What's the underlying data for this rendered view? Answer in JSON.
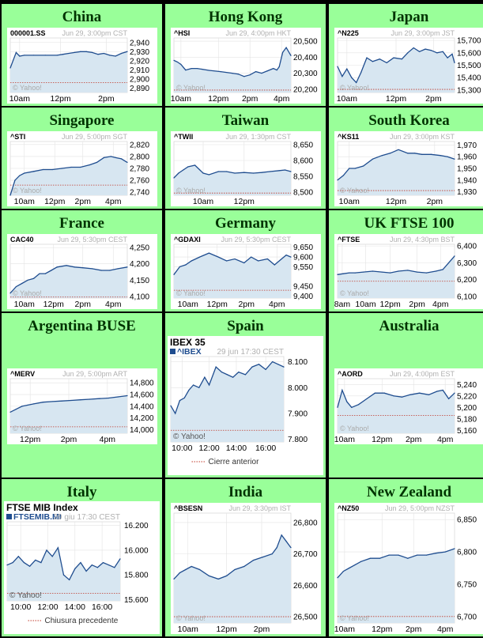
{
  "colors": {
    "cell_bg": "#99ff99",
    "fill": "#d7e6f1",
    "line": "#1f4d8f",
    "grid": "#e3e3e3",
    "prev_close": "#c0392b",
    "axis_text": "#000000",
    "meta_text": "#b0b0b0"
  },
  "chart_data": [
    {
      "region": "China",
      "type": "area",
      "symbol": "000001.SS",
      "time": "Jun 29, 3:00pm CST",
      "watermark": "© Yahoo!",
      "ylim": [
        2885,
        2945
      ],
      "yticks": [
        "2,940",
        "2,930",
        "2,920",
        "2,910",
        "2,900",
        "2,890"
      ],
      "ytick_values": [
        2940,
        2930,
        2920,
        2910,
        2900,
        2890
      ],
      "xticks": [
        "10am",
        "12pm",
        "2pm"
      ],
      "xtick_pos": [
        0.08,
        0.43,
        0.82
      ],
      "prev_close": 2896,
      "x": [
        0,
        0.05,
        0.08,
        0.12,
        0.2,
        0.3,
        0.4,
        0.45,
        0.5,
        0.55,
        0.6,
        0.65,
        0.7,
        0.75,
        0.8,
        0.85,
        0.9,
        0.95,
        1.0
      ],
      "y": [
        2912,
        2929,
        2925,
        2926,
        2926,
        2926,
        2926,
        2927,
        2928,
        2929,
        2930,
        2930,
        2929,
        2927,
        2928,
        2926,
        2925,
        2928,
        2930
      ]
    },
    {
      "region": "Hong Kong",
      "type": "area",
      "symbol": "^HSI",
      "time": "Jun 29, 4:00pm HKT",
      "watermark": "© Yahoo!",
      "ylim": [
        20180,
        20520
      ],
      "yticks": [
        "20,500",
        "20,400",
        "20,300",
        "20,200"
      ],
      "ytick_values": [
        20500,
        20400,
        20300,
        20200
      ],
      "xticks": [
        "10am",
        "12pm",
        "2pm",
        "4pm"
      ],
      "xtick_pos": [
        0.06,
        0.38,
        0.65,
        0.92
      ],
      "prev_close": 20195,
      "x": [
        0,
        0.03,
        0.06,
        0.1,
        0.15,
        0.2,
        0.3,
        0.4,
        0.5,
        0.55,
        0.6,
        0.65,
        0.7,
        0.75,
        0.8,
        0.85,
        0.88,
        0.9,
        0.93,
        0.96,
        1.0
      ],
      "y": [
        20380,
        20370,
        20355,
        20320,
        20330,
        20330,
        20318,
        20310,
        20300,
        20295,
        20280,
        20290,
        20310,
        20300,
        20315,
        20330,
        20320,
        20340,
        20430,
        20460,
        20410
      ]
    },
    {
      "region": "Japan",
      "type": "area",
      "symbol": "^N225",
      "time": "Jun 29, 3:00pm JST",
      "watermark": "© Yahoo!",
      "ylim": [
        15280,
        15720
      ],
      "yticks": [
        "15,700",
        "15,600",
        "15,500",
        "15,400",
        "15,300"
      ],
      "ytick_values": [
        15700,
        15600,
        15500,
        15400,
        15300
      ],
      "xticks": [
        "10am",
        "12pm",
        "2pm"
      ],
      "xtick_pos": [
        0.08,
        0.5,
        0.82
      ],
      "prev_close": 15305,
      "x": [
        0,
        0.04,
        0.08,
        0.12,
        0.16,
        0.2,
        0.25,
        0.3,
        0.36,
        0.42,
        0.48,
        0.55,
        0.6,
        0.65,
        0.7,
        0.75,
        0.8,
        0.85,
        0.9,
        0.94,
        0.98,
        1.0
      ],
      "y": [
        15490,
        15410,
        15470,
        15400,
        15360,
        15440,
        15560,
        15530,
        15550,
        15520,
        15560,
        15550,
        15600,
        15640,
        15610,
        15630,
        15620,
        15600,
        15610,
        15560,
        15590,
        15520
      ]
    },
    {
      "region": "Singapore",
      "type": "area",
      "symbol": "^STI",
      "time": "Jun 29, 5:00pm SGT",
      "watermark": "© Yahoo!",
      "ylim": [
        2735,
        2825
      ],
      "yticks": [
        "2,820",
        "2,800",
        "2,780",
        "2,760",
        "2,740"
      ],
      "ytick_values": [
        2820,
        2800,
        2780,
        2760,
        2740
      ],
      "xticks": [
        "10am",
        "12pm",
        "2pm",
        "4pm"
      ],
      "xtick_pos": [
        0.12,
        0.38,
        0.62,
        0.88
      ],
      "prev_close": 2752,
      "x": [
        0,
        0.04,
        0.08,
        0.12,
        0.2,
        0.28,
        0.36,
        0.44,
        0.52,
        0.6,
        0.68,
        0.74,
        0.8,
        0.86,
        0.9,
        0.95,
        1.0
      ],
      "y": [
        2735,
        2760,
        2768,
        2772,
        2775,
        2778,
        2778,
        2780,
        2782,
        2782,
        2786,
        2790,
        2798,
        2800,
        2798,
        2796,
        2790
      ]
    },
    {
      "region": "Taiwan",
      "type": "area",
      "symbol": "^TWII",
      "time": "Jun 29, 1:30pm CST",
      "watermark": "© Yahoo!",
      "ylim": [
        8490,
        8660
      ],
      "yticks": [
        "8,650",
        "8,600",
        "8,550",
        "8,500"
      ],
      "ytick_values": [
        8650,
        8600,
        8550,
        8500
      ],
      "xticks": [
        "10am",
        "12pm"
      ],
      "xtick_pos": [
        0.25,
        0.6
      ],
      "prev_close": 8497,
      "x": [
        0,
        0.04,
        0.08,
        0.12,
        0.18,
        0.25,
        0.3,
        0.38,
        0.45,
        0.52,
        0.6,
        0.68,
        0.75,
        0.82,
        0.9,
        0.95,
        1.0
      ],
      "y": [
        8545,
        8560,
        8570,
        8580,
        8585,
        8560,
        8555,
        8565,
        8565,
        8560,
        8562,
        8560,
        8562,
        8565,
        8568,
        8570,
        8565
      ]
    },
    {
      "region": "South Korea",
      "type": "area",
      "symbol": "^KS11",
      "time": "Jun 29, 3:00pm KST",
      "watermark": "© Yahoo!",
      "ylim": [
        1927,
        1973
      ],
      "yticks": [
        "1,970",
        "1,960",
        "1,950",
        "1,940",
        "1,930"
      ],
      "ytick_values": [
        1970,
        1960,
        1950,
        1940,
        1930
      ],
      "xticks": [
        "10am",
        "12pm",
        "2pm"
      ],
      "xtick_pos": [
        0.1,
        0.5,
        0.83
      ],
      "prev_close": 1931,
      "x": [
        0,
        0.05,
        0.1,
        0.15,
        0.22,
        0.3,
        0.38,
        0.45,
        0.52,
        0.6,
        0.66,
        0.72,
        0.8,
        0.88,
        0.94,
        1.0
      ],
      "y": [
        1940,
        1944,
        1950,
        1950,
        1952,
        1958,
        1961,
        1963,
        1966,
        1963,
        1963,
        1962,
        1962,
        1961,
        1960,
        1958
      ]
    },
    {
      "region": "France",
      "type": "area",
      "symbol": "CAC40",
      "time": "Jun 29, 5:30pm CEST",
      "watermark": "© Yahoo!",
      "ylim": [
        4095,
        4260
      ],
      "yticks": [
        "4,250",
        "4,200",
        "4,150",
        "4,100"
      ],
      "ytick_values": [
        4250,
        4200,
        4150,
        4100
      ],
      "xticks": [
        "10am",
        "12pm",
        "2pm",
        "4pm"
      ],
      "xtick_pos": [
        0.12,
        0.37,
        0.62,
        0.88
      ],
      "prev_close": 4098,
      "x": [
        0,
        0.05,
        0.1,
        0.15,
        0.2,
        0.25,
        0.3,
        0.35,
        0.4,
        0.48,
        0.55,
        0.62,
        0.7,
        0.78,
        0.85,
        0.92,
        1.0
      ],
      "y": [
        4110,
        4130,
        4140,
        4150,
        4155,
        4170,
        4170,
        4180,
        4190,
        4195,
        4190,
        4188,
        4185,
        4180,
        4180,
        4185,
        4190
      ]
    },
    {
      "region": "Germany",
      "type": "area",
      "symbol": "^GDAXI",
      "time": "Jun 29, 5:30pm CEST",
      "watermark": "© Yahoo!",
      "ylim": [
        9390,
        9665
      ],
      "yticks": [
        "9,650",
        "9,600",
        "9,550",
        "9,450",
        "9,400"
      ],
      "ytick_values": [
        9650,
        9600,
        9550,
        9450,
        9400
      ],
      "xticks": [
        "10am",
        "12pm",
        "2pm",
        "4pm"
      ],
      "xtick_pos": [
        0.12,
        0.37,
        0.62,
        0.88
      ],
      "prev_close": 9430,
      "x": [
        0,
        0.05,
        0.1,
        0.15,
        0.22,
        0.3,
        0.38,
        0.45,
        0.52,
        0.6,
        0.66,
        0.72,
        0.8,
        0.86,
        0.92,
        0.96,
        1.0
      ],
      "y": [
        9510,
        9550,
        9560,
        9580,
        9600,
        9620,
        9600,
        9580,
        9590,
        9570,
        9600,
        9580,
        9590,
        9560,
        9590,
        9610,
        9600
      ]
    },
    {
      "region": "UK FTSE 100",
      "type": "area",
      "symbol": "^FTSE",
      "time": "Jun 29, 4:30pm BST",
      "watermark": "© Yahoo!",
      "ylim": [
        6090,
        6410
      ],
      "yticks": [
        "6,400",
        "6,300",
        "6,200",
        "6,100"
      ],
      "ytick_values": [
        6400,
        6300,
        6200,
        6100
      ],
      "xticks": [
        "8am",
        "10am",
        "12pm",
        "2pm",
        "4pm"
      ],
      "xtick_pos": [
        0.04,
        0.24,
        0.45,
        0.68,
        0.88
      ],
      "prev_close": 6190,
      "x": [
        0,
        0.05,
        0.1,
        0.15,
        0.22,
        0.3,
        0.38,
        0.45,
        0.52,
        0.6,
        0.68,
        0.76,
        0.84,
        0.9,
        0.95,
        1.0
      ],
      "y": [
        6230,
        6235,
        6240,
        6240,
        6245,
        6250,
        6245,
        6240,
        6250,
        6255,
        6245,
        6240,
        6250,
        6260,
        6300,
        6340
      ]
    },
    {
      "region": "Argentina BUSE",
      "type": "area",
      "symbol": "^MERV",
      "time": "Jun 29, 5:00pm ART",
      "watermark": "© Yahoo!",
      "ylim": [
        13940,
        14870
      ],
      "yticks": [
        "14,800",
        "14,600",
        "14,400",
        "14,200",
        "14,000"
      ],
      "ytick_values": [
        14800,
        14600,
        14400,
        14200,
        14000
      ],
      "xticks": [
        "12pm",
        "2pm",
        "4pm"
      ],
      "xtick_pos": [
        0.17,
        0.5,
        0.83
      ],
      "prev_close": 14050,
      "x": [
        0,
        0.05,
        0.1,
        0.15,
        0.2,
        0.28,
        0.36,
        0.44,
        0.52,
        0.6,
        0.68,
        0.76,
        0.84,
        0.92,
        1.0
      ],
      "y": [
        14300,
        14350,
        14400,
        14420,
        14440,
        14470,
        14480,
        14490,
        14500,
        14510,
        14520,
        14530,
        14540,
        14560,
        14580
      ]
    },
    {
      "region": "Spain",
      "type": "area",
      "title": "IBEX 35",
      "symbol": "^IBEX",
      "time": "29 jun 17:30 CEST",
      "watermark": "© Yahoo!",
      "legend": "Cierre anterior",
      "ylim": [
        7790,
        8120
      ],
      "yticks": [
        "8.100",
        "8.000",
        "7.900",
        "7.800"
      ],
      "ytick_values": [
        8100,
        8000,
        7900,
        7800
      ],
      "xticks": [
        "10:00",
        "12:00",
        "14:00",
        "16:00"
      ],
      "xtick_pos": [
        0.1,
        0.34,
        0.58,
        0.84
      ],
      "prev_close": 7835,
      "x": [
        0,
        0.04,
        0.08,
        0.12,
        0.16,
        0.2,
        0.25,
        0.3,
        0.34,
        0.4,
        0.45,
        0.5,
        0.55,
        0.6,
        0.66,
        0.72,
        0.78,
        0.84,
        0.9,
        0.95,
        1.0
      ],
      "y": [
        7930,
        7900,
        7950,
        7960,
        7990,
        8010,
        8000,
        8040,
        8010,
        8080,
        8060,
        8050,
        8040,
        8060,
        8050,
        8080,
        8090,
        8070,
        8100,
        8090,
        8080
      ]
    },
    {
      "region": "Australia",
      "type": "area",
      "symbol": "^AORD",
      "time": "Jun 29, 4:00pm EST",
      "watermark": "© Yahoo!",
      "ylim": [
        5155,
        5250
      ],
      "yticks": [
        "5,240",
        "5,220",
        "5,200",
        "5,180",
        "5,160"
      ],
      "ytick_values": [
        5240,
        5220,
        5200,
        5180,
        5160
      ],
      "xticks": [
        "10am",
        "12pm",
        "2pm",
        "4pm"
      ],
      "xtick_pos": [
        0.06,
        0.38,
        0.65,
        0.92
      ],
      "prev_close": 5186,
      "x": [
        0,
        0.04,
        0.08,
        0.12,
        0.18,
        0.25,
        0.32,
        0.4,
        0.48,
        0.55,
        0.62,
        0.7,
        0.78,
        0.85,
        0.9,
        0.95,
        1.0
      ],
      "y": [
        5200,
        5230,
        5210,
        5200,
        5205,
        5215,
        5225,
        5225,
        5220,
        5218,
        5222,
        5225,
        5222,
        5228,
        5230,
        5215,
        5225
      ]
    },
    {
      "region": "Italy",
      "type": "area",
      "title": "FTSE MIB Index",
      "symbol": "FTSEMIB.MI",
      "time": "29 giu 17:30 CEST",
      "watermark": "© Yahoo!",
      "legend": "Chiusura precedente",
      "ylim": [
        15590,
        16230
      ],
      "yticks": [
        "16.200",
        "16.000",
        "15.800",
        "15.600"
      ],
      "ytick_values": [
        16200,
        16000,
        15800,
        15600
      ],
      "xticks": [
        "10:00",
        "12:00",
        "14:00",
        "16:00"
      ],
      "xtick_pos": [
        0.12,
        0.36,
        0.6,
        0.84
      ],
      "prev_close": 15650,
      "x": [
        0,
        0.05,
        0.1,
        0.15,
        0.2,
        0.25,
        0.3,
        0.35,
        0.4,
        0.45,
        0.5,
        0.55,
        0.6,
        0.65,
        0.7,
        0.75,
        0.8,
        0.85,
        0.9,
        0.95,
        1.0
      ],
      "y": [
        15880,
        15900,
        15950,
        15900,
        15870,
        15920,
        15900,
        16000,
        15950,
        16020,
        15800,
        15760,
        15850,
        15900,
        15830,
        15880,
        15860,
        15900,
        15880,
        15860,
        15930
      ]
    },
    {
      "region": "India",
      "type": "area",
      "symbol": "^BSESN",
      "time": "Jun 29, 3:30pm IST",
      "watermark": "© Yahoo!",
      "ylim": [
        26480,
        26830
      ],
      "yticks": [
        "26,800",
        "26,700",
        "26,600",
        "26,500"
      ],
      "ytick_values": [
        26800,
        26700,
        26600,
        26500
      ],
      "xticks": [
        "10am",
        "12pm",
        "2pm"
      ],
      "xtick_pos": [
        0.12,
        0.45,
        0.75
      ],
      "prev_close": 26500,
      "x": [
        0,
        0.05,
        0.1,
        0.15,
        0.22,
        0.3,
        0.38,
        0.45,
        0.52,
        0.6,
        0.68,
        0.76,
        0.84,
        0.88,
        0.92,
        0.96,
        1.0
      ],
      "y": [
        26620,
        26640,
        26650,
        26660,
        26650,
        26630,
        26620,
        26630,
        26650,
        26660,
        26680,
        26690,
        26700,
        26720,
        26760,
        26740,
        26720
      ]
    },
    {
      "region": "New Zealand",
      "type": "area",
      "symbol": "^NZ50",
      "time": "Jun 29, 5:00pm NZST",
      "watermark": "© Yahoo!",
      "ylim": [
        6690,
        6860
      ],
      "yticks": [
        "6,850",
        "6,800",
        "6,750",
        "6,700"
      ],
      "ytick_values": [
        6850,
        6800,
        6750,
        6700
      ],
      "xticks": [
        "10am",
        "12pm",
        "2pm",
        "4pm"
      ],
      "xtick_pos": [
        0.06,
        0.38,
        0.65,
        0.92
      ],
      "prev_close": 6700,
      "x": [
        0,
        0.05,
        0.1,
        0.15,
        0.2,
        0.28,
        0.36,
        0.44,
        0.52,
        0.6,
        0.68,
        0.76,
        0.84,
        0.92,
        1.0
      ],
      "y": [
        6760,
        6770,
        6775,
        6780,
        6785,
        6790,
        6790,
        6795,
        6795,
        6790,
        6795,
        6795,
        6798,
        6800,
        6805
      ]
    }
  ]
}
